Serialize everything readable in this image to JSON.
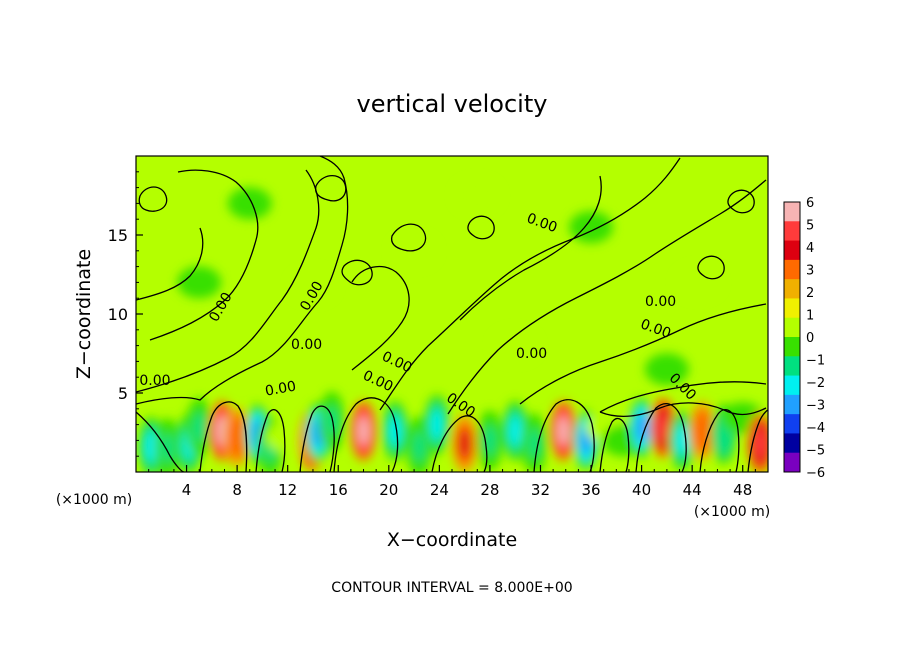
{
  "chart_data": {
    "type": "heatmap",
    "title": "vertical velocity",
    "xlabel": "X−coordinate",
    "ylabel": "Z−coordinate",
    "x_unit": "(×1000 m)",
    "y_unit": "(×1000 m)",
    "xlim": [
      0,
      50
    ],
    "ylim": [
      0,
      20
    ],
    "x_ticks": [
      "4",
      "8",
      "12",
      "16",
      "20",
      "24",
      "28",
      "32",
      "36",
      "40",
      "44",
      "48"
    ],
    "y_ticks": [
      "5",
      "10",
      "15"
    ],
    "footer": "CONTOUR INTERVAL = 8.000E+00",
    "colorbar": {
      "labels": [
        "6",
        "5",
        "4",
        "3",
        "2",
        "1",
        "0",
        "−1",
        "−2",
        "−3",
        "−4",
        "−5",
        "−6"
      ],
      "colors": [
        "#f7b4b4",
        "#ff3b3b",
        "#dd0010",
        "#ff6a00",
        "#f0b000",
        "#f0f000",
        "#b4ff00",
        "#38e000",
        "#00e080",
        "#00f0f0",
        "#20a0ff",
        "#1040f0",
        "#0000a0",
        "#7a00c0"
      ]
    },
    "contour_labels": [
      "0.00",
      "0.00",
      "0.00",
      "0.00",
      "0.00",
      "0.00",
      "0.00",
      "0.00",
      "0.00",
      "0.00",
      "0.00",
      "0.00",
      "0.00"
    ],
    "cells": [
      {
        "x": 1.2,
        "z": 1.6,
        "w": -3.2
      },
      {
        "x": 2.5,
        "z": 1.5,
        "w": -2.5
      },
      {
        "x": 4.2,
        "z": 1.8,
        "w": -3.8
      },
      {
        "x": 5.0,
        "z": 2.8,
        "w": -2.0
      },
      {
        "x": 6.8,
        "z": 2.6,
        "w": 5.5
      },
      {
        "x": 8.0,
        "z": 2.2,
        "w": 3.0
      },
      {
        "x": 9.6,
        "z": 2.4,
        "w": -4.3
      },
      {
        "x": 10.6,
        "z": 1.6,
        "w": -2.5
      },
      {
        "x": 12.0,
        "z": 2.2,
        "w": 1.5
      },
      {
        "x": 13.9,
        "z": 2.0,
        "w": 5.8
      },
      {
        "x": 14.4,
        "z": 2.5,
        "w": -4.0
      },
      {
        "x": 15.5,
        "z": 3.2,
        "w": -2.0
      },
      {
        "x": 18.0,
        "z": 2.6,
        "w": 6.0
      },
      {
        "x": 20.5,
        "z": 2.6,
        "w": -3.2
      },
      {
        "x": 22.4,
        "z": 1.6,
        "w": -2.2
      },
      {
        "x": 23.8,
        "z": 3.0,
        "w": -3.0
      },
      {
        "x": 26.0,
        "z": 1.8,
        "w": 3.5
      },
      {
        "x": 28.0,
        "z": 2.0,
        "w": -2.0
      },
      {
        "x": 30.0,
        "z": 2.6,
        "w": -3.4
      },
      {
        "x": 31.5,
        "z": 1.8,
        "w": -2.4
      },
      {
        "x": 33.8,
        "z": 2.6,
        "w": 5.8
      },
      {
        "x": 35.6,
        "z": 2.0,
        "w": -4.4
      },
      {
        "x": 37.3,
        "z": 2.8,
        "w": 1.5
      },
      {
        "x": 38.6,
        "z": 2.0,
        "w": -1.8
      },
      {
        "x": 40.0,
        "z": 2.8,
        "w": -4.0
      },
      {
        "x": 41.7,
        "z": 2.8,
        "w": 4.8
      },
      {
        "x": 43.2,
        "z": 2.0,
        "w": -3.6
      },
      {
        "x": 44.8,
        "z": 2.6,
        "w": 2.8
      },
      {
        "x": 46.5,
        "z": 2.4,
        "w": -2.8
      },
      {
        "x": 48.0,
        "z": 3.4,
        "w": -1.8
      },
      {
        "x": 49.4,
        "z": 1.8,
        "w": 5.0
      },
      {
        "x": 14.0,
        "z": 11.8,
        "w": 0.7
      },
      {
        "x": 22.0,
        "z": 14.0,
        "w": 0.6
      },
      {
        "x": 9.0,
        "z": 17.0,
        "w": -0.5
      },
      {
        "x": 36.0,
        "z": 15.5,
        "w": -0.6
      },
      {
        "x": 44.5,
        "z": 12.0,
        "w": 0.8
      },
      {
        "x": 5.0,
        "z": 12.0,
        "w": -0.6
      },
      {
        "x": 30.0,
        "z": 8.0,
        "w": 0.5
      },
      {
        "x": 27.0,
        "z": 17.5,
        "w": 0.5
      },
      {
        "x": 42.0,
        "z": 6.5,
        "w": -0.6
      }
    ]
  }
}
